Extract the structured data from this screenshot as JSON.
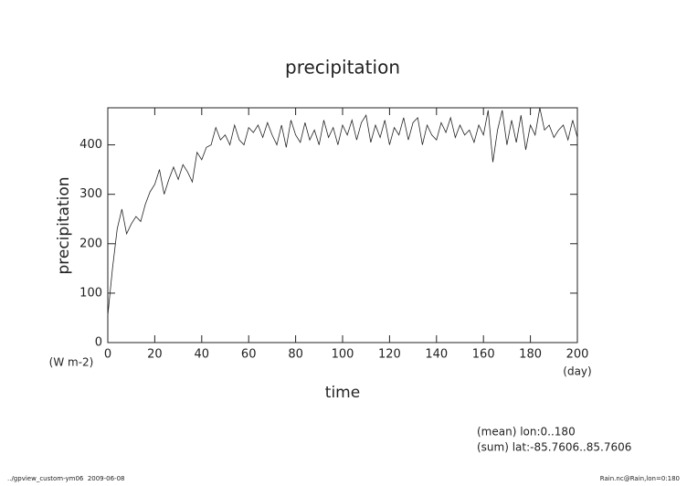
{
  "chart_data": {
    "type": "line",
    "title": "precipitation",
    "y_label": "precipitation",
    "y_unit": "(W m-2)",
    "x_label": "time",
    "x_unit": "(day)",
    "annotations": [
      "(mean) lon:0..180",
      "(sum) lat:-85.7606..85.7606"
    ],
    "footer_left": "../gpview_custom-ym06  2009-06-08",
    "footer_right": "Rain.nc@Rain,lon=0:180",
    "xlim": [
      0,
      200
    ],
    "xticks": [
      0,
      20,
      40,
      60,
      80,
      100,
      120,
      140,
      160,
      180,
      200
    ],
    "ylim": [
      0,
      475
    ],
    "yticks": [
      0,
      100,
      200,
      300,
      400
    ],
    "color": "#222222",
    "x": [
      0,
      2,
      4,
      6,
      8,
      10,
      12,
      14,
      16,
      18,
      20,
      22,
      24,
      26,
      28,
      30,
      32,
      34,
      36,
      38,
      40,
      42,
      44,
      46,
      48,
      50,
      52,
      54,
      56,
      58,
      60,
      62,
      64,
      66,
      68,
      70,
      72,
      74,
      76,
      78,
      80,
      82,
      84,
      86,
      88,
      90,
      92,
      94,
      96,
      98,
      100,
      102,
      104,
      106,
      108,
      110,
      112,
      114,
      116,
      118,
      120,
      122,
      124,
      126,
      128,
      130,
      132,
      134,
      136,
      138,
      140,
      142,
      144,
      146,
      148,
      150,
      152,
      154,
      156,
      158,
      160,
      162,
      164,
      166,
      168,
      170,
      172,
      174,
      176,
      178,
      180,
      182,
      184,
      186,
      188,
      190,
      192,
      194,
      196,
      198,
      200
    ],
    "values": [
      55,
      150,
      230,
      270,
      220,
      240,
      255,
      245,
      280,
      305,
      320,
      350,
      300,
      330,
      355,
      330,
      360,
      345,
      325,
      385,
      370,
      395,
      400,
      435,
      410,
      420,
      400,
      440,
      410,
      400,
      435,
      425,
      440,
      415,
      445,
      420,
      400,
      440,
      395,
      450,
      420,
      405,
      445,
      410,
      430,
      400,
      450,
      415,
      435,
      400,
      440,
      420,
      450,
      410,
      445,
      460,
      405,
      440,
      415,
      450,
      400,
      435,
      420,
      455,
      410,
      445,
      455,
      400,
      440,
      420,
      410,
      445,
      425,
      455,
      415,
      440,
      420,
      430,
      405,
      440,
      420,
      470,
      365,
      430,
      470,
      400,
      450,
      405,
      460,
      390,
      440,
      420,
      475,
      430,
      440,
      415,
      430,
      440,
      410,
      450,
      415
    ]
  }
}
